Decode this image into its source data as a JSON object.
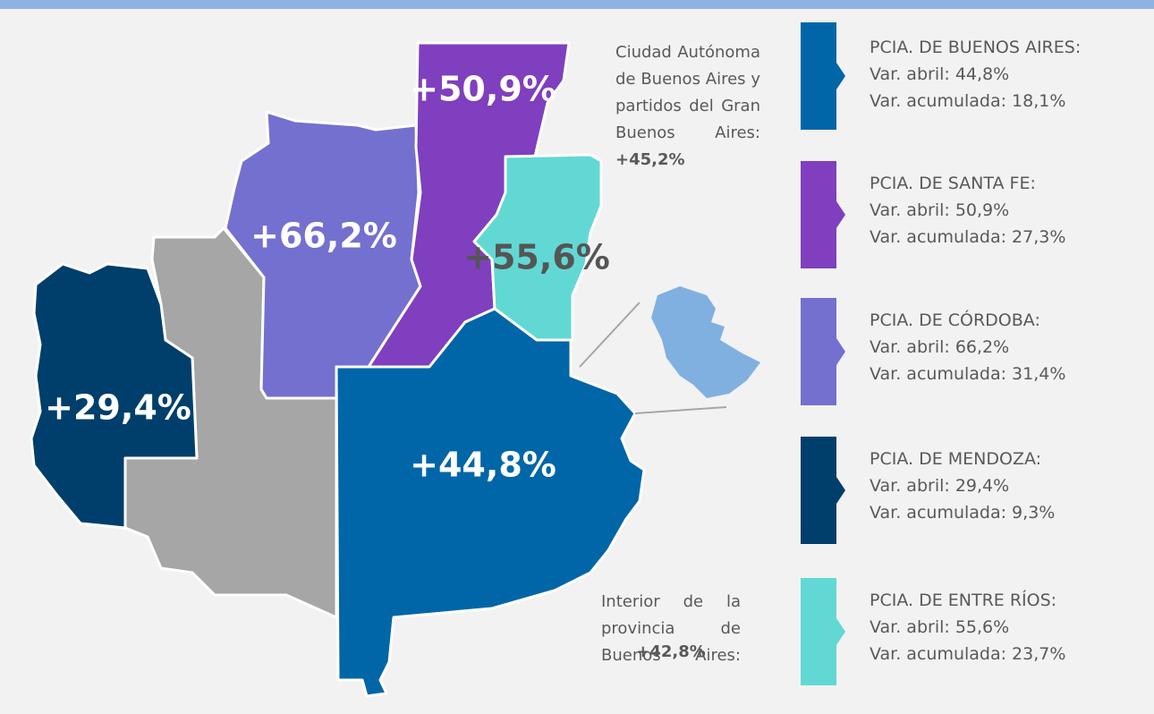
{
  "map": {
    "regions": [
      {
        "label": "+50,9%"
      },
      {
        "label": "+66,2%"
      },
      {
        "label": "+55,6%"
      },
      {
        "label": "+29,4%"
      },
      {
        "label": "+44,8%"
      }
    ],
    "notes": [
      {
        "text": "Ciudad Autónoma de Buenos Aires y partidos del Gran Buenos Aires:",
        "value": "+45,2%"
      },
      {
        "text": "Interior de la provincia de Buenos Aires:",
        "value": "+42,8%"
      }
    ]
  },
  "legend": [
    {
      "name": "PCIA. DE BUENOS AIRES:",
      "abril": "Var. abril: 44,8%",
      "acumulada": "Var. acumulada: 18,1%"
    },
    {
      "name": "PCIA. DE SANTA FE:",
      "abril": "Var. abril: 50,9%",
      "acumulada": "Var. acumulada: 27,3%"
    },
    {
      "name": "PCIA. DE CÓRDOBA:",
      "abril": "Var. abril: 66,2%",
      "acumulada": "Var. acumulada: 31,4%"
    },
    {
      "name": "PCIA. DE MENDOZA:",
      "abril": "Var. abril: 29,4%",
      "acumulada": "Var. acumulada: 9,3%"
    },
    {
      "name": "PCIA. DE ENTRE RÍOS:",
      "abril": "Var. abril: 55,6%",
      "acumulada": "Var. acumulada: 23,7%"
    }
  ]
}
